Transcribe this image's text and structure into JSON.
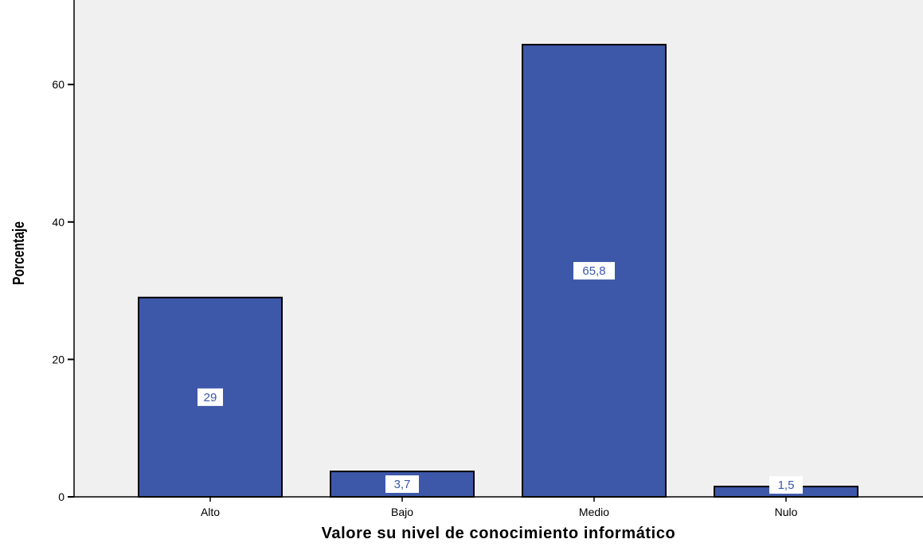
{
  "chart_data": {
    "type": "bar",
    "categories": [
      "Alto",
      "Bajo",
      "Medio",
      "Nulo"
    ],
    "values": [
      29,
      3.7,
      65.8,
      1.5
    ],
    "data_labels": [
      "29",
      "3,7",
      "65,8",
      "1,5"
    ],
    "xlabel": "Valore su nivel de conocimiento informático",
    "ylabel": "Porcentaje",
    "ylim": [
      0,
      72.3
    ],
    "yticks": [
      0,
      20,
      40,
      60
    ],
    "ytick_labels": [
      "0",
      "20",
      "40",
      "60"
    ],
    "grid": false,
    "legend": "none",
    "colors": {
      "bar_fill": "#3e58a9",
      "bar_stroke": "#000000",
      "plot_background": "#f0f0f0",
      "label_box": "#ffffff",
      "label_text": "#3b57a8"
    }
  }
}
